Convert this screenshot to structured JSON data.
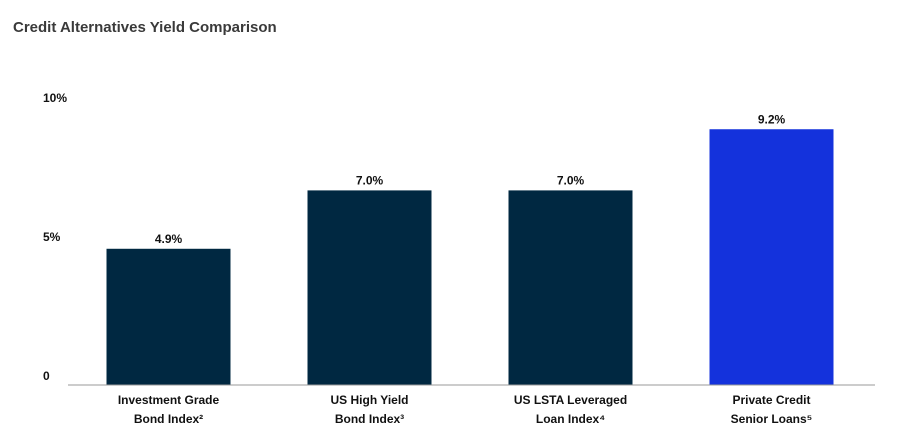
{
  "chart_data": {
    "type": "bar",
    "title": "Credit Alternatives Yield Comparison",
    "categories": [
      "Investment Grade\nBond Index²",
      "US High Yield\nBond Index³",
      "US LSTA Leveraged\nLoan Index⁴",
      "Private Credit\nSenior Loans⁵"
    ],
    "values": [
      4.9,
      7.0,
      7.0,
      9.2
    ],
    "value_labels": [
      "4.9%",
      "7.0%",
      "7.0%",
      "9.2%"
    ],
    "colors": [
      "#002841",
      "#002841",
      "#002841",
      "#1432dc"
    ],
    "ylim": [
      0,
      10
    ],
    "yticks": [
      0,
      {
        "value": 5,
        "label": "5%"
      },
      {
        "value": 10,
        "label": "10%"
      }
    ],
    "grid": false
  }
}
